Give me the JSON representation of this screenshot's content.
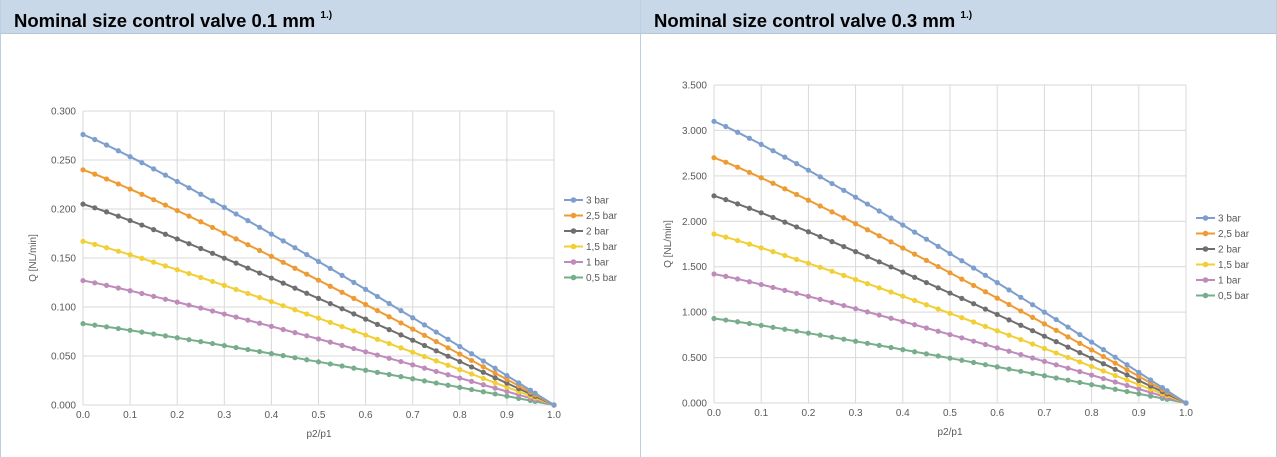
{
  "chart_data": [
    {
      "type": "line",
      "title": "Nominal size control valve 0.1 mm",
      "title_sup": "1.)",
      "xlabel": "p2/p1",
      "ylabel": "Q [NL/min]",
      "xlim": [
        0,
        1
      ],
      "ylim": [
        0,
        0.3
      ],
      "x_ticks": [
        "0.0",
        "0.1",
        "0.2",
        "0.3",
        "0.4",
        "0.5",
        "0.6",
        "0.7",
        "0.8",
        "0.9",
        "1.0"
      ],
      "y_ticks": [
        "0.000",
        "0.050",
        "0.100",
        "0.150",
        "0.200",
        "0.250",
        "0.300"
      ],
      "grid": true,
      "legend_position": "right",
      "series": [
        {
          "name": "3 bar",
          "color": "#7d9fcd",
          "q0": 0.276
        },
        {
          "name": "2,5 bar",
          "color": "#ee9b34",
          "q0": 0.24
        },
        {
          "name": "2 bar",
          "color": "#6f6f6f",
          "q0": 0.205
        },
        {
          "name": "1,5 bar",
          "color": "#f1cf35",
          "q0": 0.167
        },
        {
          "name": "1 bar",
          "color": "#bf8bbb",
          "q0": 0.127
        },
        {
          "name": "0,5 bar",
          "color": "#78ad8c",
          "q0": 0.083
        }
      ]
    },
    {
      "type": "line",
      "title": "Nominal size control valve 0.3 mm",
      "title_sup": "1.)",
      "xlabel": "p2/p1",
      "ylabel": "Q [NL/min]",
      "xlim": [
        0,
        1
      ],
      "ylim": [
        0,
        3.5
      ],
      "x_ticks": [
        "0.0",
        "0.1",
        "0.2",
        "0.3",
        "0.4",
        "0.5",
        "0.6",
        "0.7",
        "0.8",
        "0.9",
        "1.0"
      ],
      "y_ticks": [
        "0.000",
        "0.500",
        "1.000",
        "1.500",
        "2.000",
        "2.500",
        "3.000",
        "3.500"
      ],
      "grid": true,
      "legend_position": "right",
      "series": [
        {
          "name": "3 bar",
          "color": "#7d9fcd",
          "q0": 3.1
        },
        {
          "name": "2,5 bar",
          "color": "#ee9b34",
          "q0": 2.7
        },
        {
          "name": "2 bar",
          "color": "#6f6f6f",
          "q0": 2.28
        },
        {
          "name": "1,5 bar",
          "color": "#f1cf35",
          "q0": 1.86
        },
        {
          "name": "1 bar",
          "color": "#bf8bbb",
          "q0": 1.42
        },
        {
          "name": "0,5 bar",
          "color": "#78ad8c",
          "q0": 0.93
        }
      ]
    }
  ]
}
